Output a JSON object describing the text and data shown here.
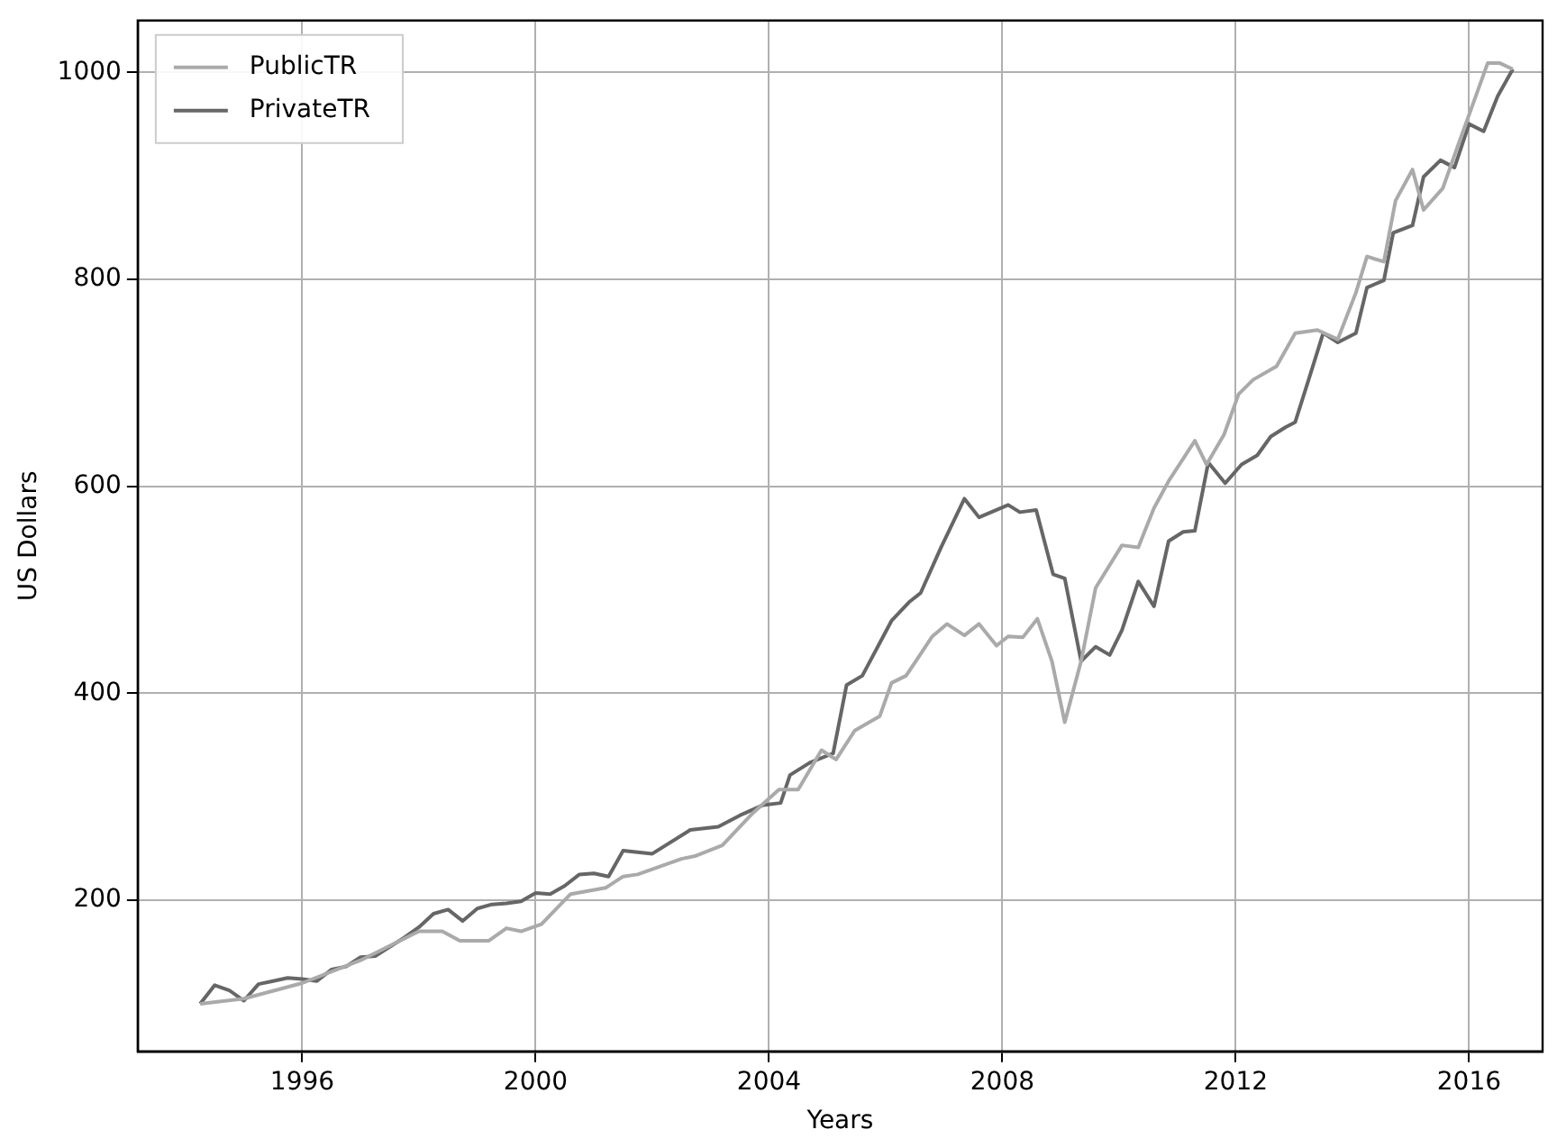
{
  "chart_data": {
    "type": "line",
    "xlabel": "Years",
    "ylabel": "US Dollars",
    "xlim": [
      1993.18,
      2017.26
    ],
    "ylim": [
      54,
      1050
    ],
    "xticks": [
      1996,
      2000,
      2004,
      2008,
      2012,
      2016
    ],
    "yticks": [
      200,
      400,
      600,
      800,
      1000
    ],
    "grid": true,
    "legend": "top left",
    "marker": "none",
    "line_style": "solid",
    "series": [
      {
        "name": "PublicTR",
        "color": "#aaaaaa",
        "x": [
          1994.25,
          1995,
          1996,
          1997,
          1998,
          1998.4,
          1998.7,
          1999.2,
          1999.5,
          1999.75,
          2000.1,
          2000.6,
          2001.2,
          2001.5,
          2001.75,
          2002.5,
          2002.75,
          2003.2,
          2003.7,
          2004.17,
          2004.5,
          2004.9,
          2005.15,
          2005.47,
          2005.9,
          2006.1,
          2006.35,
          2006.8,
          2007.05,
          2007.35,
          2007.6,
          2007.9,
          2008.1,
          2008.35,
          2008.6,
          2008.85,
          2009.07,
          2009.35,
          2009.6,
          2010.05,
          2010.33,
          2010.6,
          2010.85,
          2011.3,
          2011.5,
          2011.8,
          2012.05,
          2012.3,
          2012.7,
          2013.02,
          2013.4,
          2013.75,
          2014.06,
          2014.25,
          2014.54,
          2014.74,
          2015.03,
          2015.22,
          2015.55,
          2015.84,
          2016.0,
          2016.32,
          2016.52,
          2016.75
        ],
        "values": [
          100,
          105,
          120,
          142,
          170,
          170,
          161,
          161,
          173,
          170,
          177,
          206,
          212,
          223,
          225,
          240,
          243,
          253,
          283,
          307,
          307,
          345,
          336,
          364,
          378,
          410,
          417,
          455,
          467,
          456,
          467,
          446,
          455,
          454,
          472,
          431,
          372,
          431,
          502,
          543,
          541,
          579,
          605,
          644,
          621,
          650,
          689,
          703,
          716,
          748,
          751,
          742,
          787,
          822,
          817,
          876,
          906,
          867,
          888,
          934,
          959,
          1009,
          1009,
          1003
        ]
      },
      {
        "name": "PrivateTR",
        "color": "#666666",
        "x": [
          1994.25,
          1994.5,
          1994.75,
          1995,
          1995.25,
          1995.5,
          1995.75,
          1996,
          1996.25,
          1996.5,
          1996.75,
          1997,
          1997.25,
          1997.5,
          1997.75,
          1998,
          1998.25,
          1998.5,
          1998.75,
          1999,
          1999.25,
          1999.5,
          1999.75,
          2000,
          2000.25,
          2000.5,
          2000.75,
          2001,
          2001.25,
          2001.5,
          2002,
          2002.65,
          2003.13,
          2003.5,
          2003.9,
          2004.2,
          2004.36,
          2004.7,
          2005.1,
          2005.33,
          2005.6,
          2006.1,
          2006.4,
          2006.6,
          2006.95,
          2007.35,
          2007.6,
          2008.1,
          2008.3,
          2008.58,
          2008.87,
          2009.07,
          2009.35,
          2009.6,
          2009.84,
          2010.05,
          2010.33,
          2010.6,
          2010.85,
          2011.1,
          2011.3,
          2011.53,
          2011.82,
          2012.1,
          2012.37,
          2012.6,
          2012.85,
          2013.02,
          2013.25,
          2013.5,
          2013.75,
          2014.06,
          2014.25,
          2014.54,
          2014.7,
          2015.03,
          2015.22,
          2015.51,
          2015.75,
          2016,
          2016.25,
          2016.49,
          2016.75
        ],
        "values": [
          100,
          118,
          113,
          103,
          119,
          122,
          125,
          124,
          122,
          133,
          136,
          145,
          146,
          155,
          164,
          174,
          187,
          191,
          180,
          192,
          196,
          197,
          199,
          207,
          206,
          214,
          225,
          226,
          223,
          248,
          245,
          268,
          271,
          282,
          292,
          294,
          321,
          333,
          342,
          408,
          417,
          470,
          488,
          497,
          541,
          588,
          570,
          582,
          575,
          577,
          515,
          511,
          431,
          445,
          437,
          461,
          508,
          484,
          547,
          556,
          557,
          623,
          603,
          621,
          630,
          648,
          657,
          662,
          703,
          748,
          739,
          748,
          792,
          799,
          845,
          852,
          899,
          915,
          908,
          950,
          943,
          977,
          1003
        ]
      }
    ]
  }
}
